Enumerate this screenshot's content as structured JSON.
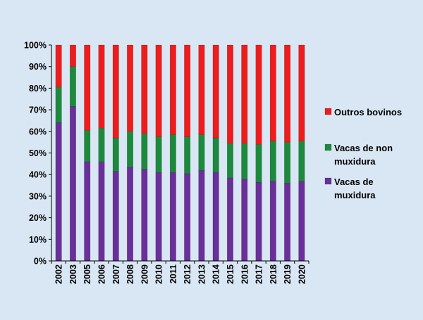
{
  "chart_data": {
    "type": "bar",
    "stacked": true,
    "percent_stacked": true,
    "categories": [
      "2002",
      "2003",
      "2005",
      "2006",
      "2007",
      "2008",
      "2009",
      "2010",
      "2011",
      "2012",
      "2013",
      "2014",
      "2015",
      "2016",
      "2017",
      "2018",
      "2019",
      "2020"
    ],
    "series": [
      {
        "name": "Vacas de muxidura",
        "color": "#6a2f99",
        "values": [
          64,
          71.5,
          46,
          46,
          41.5,
          43.5,
          42.5,
          41,
          41,
          40.5,
          42,
          41,
          38.5,
          38,
          36.5,
          37,
          36,
          37
        ]
      },
      {
        "name": "Vacas de non muxidura",
        "color": "#1c8a3c",
        "values": [
          16.5,
          18.5,
          14.5,
          15.5,
          15.5,
          16.5,
          16.5,
          16.5,
          17.5,
          17,
          16.5,
          16,
          16,
          16.5,
          17.5,
          18.5,
          19,
          18.5
        ]
      },
      {
        "name": "Outros bovinos",
        "color": "#ee1c1c",
        "values": [
          19.5,
          10,
          39.5,
          38.5,
          43,
          40,
          41,
          42.5,
          41.5,
          42.5,
          41.5,
          43,
          45.5,
          45.5,
          46,
          44.5,
          45,
          44.5
        ]
      }
    ],
    "yticks": [
      "0%",
      "10%",
      "20%",
      "30%",
      "40%",
      "50%",
      "60%",
      "70%",
      "80%",
      "90%",
      "100%"
    ],
    "ylim": [
      0,
      100
    ],
    "legend": [
      {
        "label_lines": [
          "Outros bovinos"
        ],
        "color": "#ee1c1c"
      },
      {
        "label_lines": [
          "Vacas de non",
          "muxidura"
        ],
        "color": "#1c8a3c"
      },
      {
        "label_lines": [
          "Vacas de",
          "muxidura"
        ],
        "color": "#6a2f99"
      }
    ],
    "legend_position": "right",
    "grid": false,
    "title": "",
    "xlabel": "",
    "ylabel": ""
  }
}
